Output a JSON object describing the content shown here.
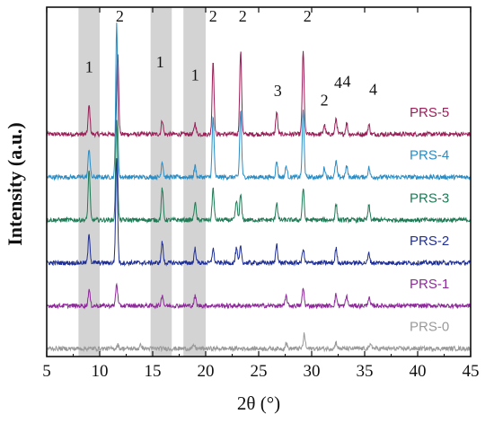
{
  "chart_data": {
    "type": "line",
    "xlabel": "2θ (°)",
    "ylabel": "Intensity (a.u.)",
    "xlim": [
      5,
      45
    ],
    "x_ticks": [
      "5",
      "10",
      "15",
      "20",
      "25",
      "30",
      "35",
      "40",
      "45"
    ],
    "x_tick_values": [
      5,
      10,
      15,
      20,
      25,
      30,
      35,
      40,
      45
    ],
    "y_ticks_shown": false,
    "shaded_bands": [
      [
        8,
        10
      ],
      [
        14.8,
        16.8
      ],
      [
        17.9,
        20
      ]
    ],
    "peak_labels": [
      {
        "text": "1",
        "x": 9.0,
        "y": 8.95
      },
      {
        "text": "2",
        "x": 11.9,
        "y": 10.55
      },
      {
        "text": "1",
        "x": 15.7,
        "y": 9.1
      },
      {
        "text": "1",
        "x": 19.0,
        "y": 8.7
      },
      {
        "text": "2",
        "x": 20.7,
        "y": 10.55
      },
      {
        "text": "2",
        "x": 23.5,
        "y": 10.55
      },
      {
        "text": "3",
        "x": 26.8,
        "y": 8.2
      },
      {
        "text": "2",
        "x": 29.6,
        "y": 10.55
      },
      {
        "text": "2",
        "x": 31.2,
        "y": 7.9
      },
      {
        "text": "4",
        "x": 32.5,
        "y": 8.45
      },
      {
        "text": "4",
        "x": 33.3,
        "y": 8.5
      },
      {
        "text": "4",
        "x": 35.8,
        "y": 8.25
      }
    ],
    "series": [
      {
        "name": "PRS-5",
        "color": "#9a1f57",
        "offset": 7.0,
        "peaks": [
          [
            9.0,
            0.9
          ],
          [
            11.7,
            2.6
          ],
          [
            15.9,
            0.45
          ],
          [
            19.0,
            0.35
          ],
          [
            20.7,
            2.3
          ],
          [
            23.3,
            2.6
          ],
          [
            26.7,
            0.7
          ],
          [
            29.2,
            2.6
          ],
          [
            31.2,
            0.3
          ],
          [
            32.3,
            0.5
          ],
          [
            33.3,
            0.35
          ],
          [
            35.4,
            0.3
          ]
        ]
      },
      {
        "name": "PRS-4",
        "color": "#2b8dc4",
        "offset": 5.65,
        "peaks": [
          [
            9.0,
            0.9
          ],
          [
            11.6,
            4.8
          ],
          [
            15.9,
            0.5
          ],
          [
            19.0,
            0.35
          ],
          [
            20.7,
            1.9
          ],
          [
            23.3,
            2.1
          ],
          [
            26.7,
            0.5
          ],
          [
            27.6,
            0.35
          ],
          [
            29.2,
            2.1
          ],
          [
            31.2,
            0.3
          ],
          [
            32.3,
            0.5
          ],
          [
            33.3,
            0.35
          ],
          [
            35.4,
            0.3
          ]
        ]
      },
      {
        "name": "PRS-3",
        "color": "#1f7a55",
        "offset": 4.3,
        "peaks": [
          [
            9.0,
            1.6
          ],
          [
            11.6,
            3.2
          ],
          [
            15.9,
            1.0
          ],
          [
            19.0,
            0.55
          ],
          [
            20.7,
            1.0
          ],
          [
            22.9,
            0.6
          ],
          [
            23.3,
            0.8
          ],
          [
            26.7,
            0.55
          ],
          [
            29.2,
            1.0
          ],
          [
            32.3,
            0.5
          ],
          [
            35.4,
            0.45
          ]
        ]
      },
      {
        "name": "PRS-2",
        "color": "#1f2f96",
        "offset": 2.95,
        "peaks": [
          [
            9.0,
            0.9
          ],
          [
            11.6,
            3.3
          ],
          [
            15.9,
            0.65
          ],
          [
            19.0,
            0.45
          ],
          [
            20.7,
            0.45
          ],
          [
            22.9,
            0.45
          ],
          [
            23.3,
            0.5
          ],
          [
            26.7,
            0.6
          ],
          [
            29.2,
            0.45
          ],
          [
            32.3,
            0.45
          ],
          [
            35.4,
            0.3
          ]
        ]
      },
      {
        "name": "PRS-1",
        "color": "#8e2a9a",
        "offset": 1.6,
        "peaks": [
          [
            9.0,
            0.5
          ],
          [
            11.6,
            0.7
          ],
          [
            15.9,
            0.35
          ],
          [
            19.0,
            0.3
          ],
          [
            27.6,
            0.3
          ],
          [
            29.2,
            0.55
          ],
          [
            32.3,
            0.35
          ],
          [
            33.3,
            0.3
          ],
          [
            35.4,
            0.25
          ]
        ]
      },
      {
        "name": "PRS-0",
        "color": "#9a9a9a",
        "offset": 0.25,
        "peaks": [
          [
            11.7,
            0.12
          ],
          [
            13.9,
            0.12
          ],
          [
            18.9,
            0.1
          ],
          [
            27.6,
            0.18
          ],
          [
            29.3,
            0.45
          ],
          [
            32.3,
            0.2
          ],
          [
            35.6,
            0.15
          ]
        ]
      }
    ]
  }
}
